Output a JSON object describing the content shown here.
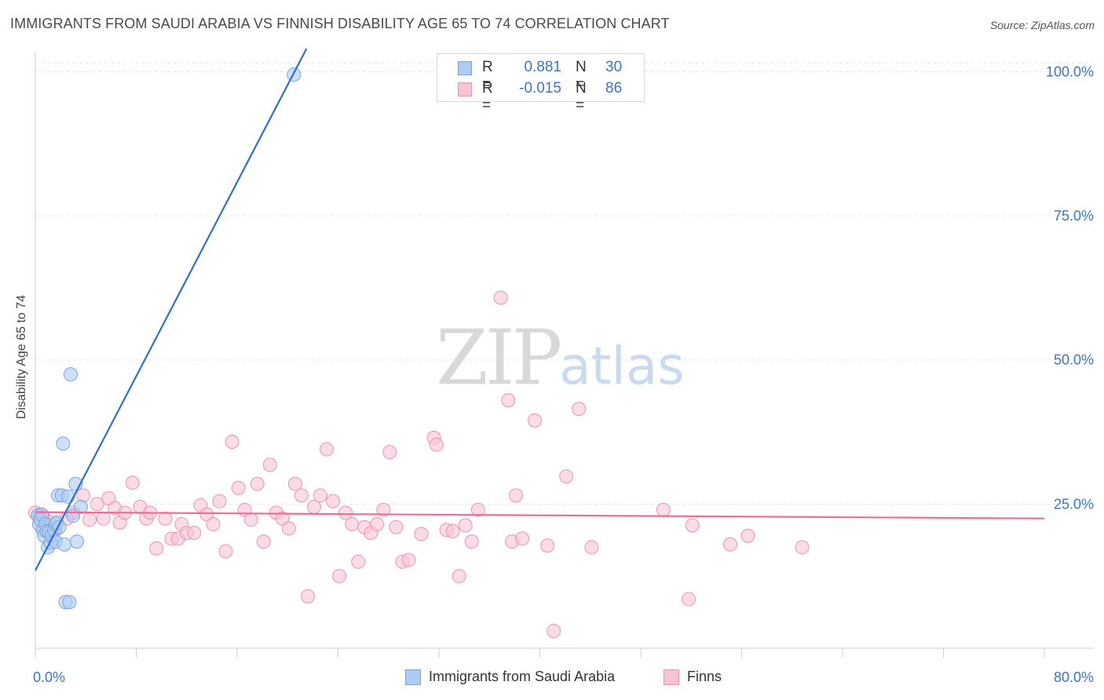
{
  "header": {
    "title": "IMMIGRANTS FROM SAUDI ARABIA VS FINNISH DISABILITY AGE 65 TO 74 CORRELATION CHART",
    "source": "Source: ZipAtlas.com"
  },
  "watermark": {
    "zip": "ZIP",
    "atlas": "atlas"
  },
  "stats": {
    "rows": [
      {
        "label": "R =",
        "r": "0.881",
        "n_label": "N =",
        "n": "30",
        "color": "#aecbf2",
        "border": "#7ba4dd"
      },
      {
        "label": "R =",
        "r": "-0.015",
        "n_label": "N =",
        "n": "86",
        "color": "#f8c3d3",
        "border": "#e996b0"
      }
    ]
  },
  "legend": {
    "items": [
      {
        "label": "Immigrants from Saudi Arabia",
        "color": "#aecbf2",
        "border": "#7ba4dd"
      },
      {
        "label": "Finns",
        "color": "#f8c3d3",
        "border": "#e996b0"
      }
    ]
  },
  "chart_data": {
    "type": "scatter",
    "title": "IMMIGRANTS FROM SAUDI ARABIA VS FINNISH DISABILITY AGE 65 TO 74 CORRELATION CHART",
    "xlabel": "",
    "ylabel": "Disability Age 65 to 74",
    "xlim": [
      0,
      80
    ],
    "ylim": [
      0,
      104
    ],
    "x_tick_labels": [
      "0.0%",
      "80.0%"
    ],
    "y_ticks": [
      25,
      50,
      75,
      100
    ],
    "y_tick_labels": [
      "25.0%",
      "50.0%",
      "75.0%",
      "100.0%"
    ],
    "grid": true,
    "series": [
      {
        "name": "Immigrants from Saudi Arabia",
        "color": "#aecbf2",
        "edge": "#7ba4dd",
        "trend_color": "#2f6fce",
        "trend": {
          "x": [
            0.0,
            21.5
          ],
          "y": [
            13.5,
            104.0
          ]
        },
        "points": [
          [
            0.2,
            23.0
          ],
          [
            0.3,
            21.5
          ],
          [
            0.4,
            22.3
          ],
          [
            0.5,
            23.2
          ],
          [
            0.6,
            20.5
          ],
          [
            0.7,
            19.5
          ],
          [
            0.8,
            21.5
          ],
          [
            0.9,
            20.3
          ],
          [
            1.0,
            17.5
          ],
          [
            1.1,
            20.2
          ],
          [
            1.2,
            18.3
          ],
          [
            1.3,
            19.5
          ],
          [
            1.5,
            20.5
          ],
          [
            1.6,
            21.5
          ],
          [
            1.6,
            18.5
          ],
          [
            1.7,
            21.8
          ],
          [
            1.8,
            26.5
          ],
          [
            1.9,
            21.0
          ],
          [
            2.1,
            26.5
          ],
          [
            2.3,
            18.0
          ],
          [
            2.2,
            35.5
          ],
          [
            2.4,
            8.0
          ],
          [
            2.7,
            8.0
          ],
          [
            2.6,
            26.3
          ],
          [
            2.8,
            47.5
          ],
          [
            3.0,
            23.0
          ],
          [
            3.2,
            28.5
          ],
          [
            3.3,
            18.5
          ],
          [
            3.6,
            24.5
          ],
          [
            20.5,
            99.5
          ]
        ]
      },
      {
        "name": "Finns",
        "color": "#f8c3d3",
        "edge": "#e996b0",
        "trend_color": "#e76f9a",
        "trend": {
          "x": [
            0.0,
            80.0
          ],
          "y": [
            23.6,
            22.5
          ]
        },
        "points": [
          [
            0.3,
            23.2
          ],
          [
            1.0,
            22.0
          ],
          [
            1.6,
            20.5
          ],
          [
            2.5,
            22.5
          ],
          [
            3.0,
            23.5
          ],
          [
            3.8,
            26.5
          ],
          [
            4.3,
            22.3
          ],
          [
            4.9,
            25.0
          ],
          [
            5.4,
            22.5
          ],
          [
            5.8,
            26.0
          ],
          [
            6.3,
            24.3
          ],
          [
            6.7,
            21.8
          ],
          [
            7.1,
            23.5
          ],
          [
            7.7,
            28.7
          ],
          [
            8.3,
            24.5
          ],
          [
            8.8,
            22.5
          ],
          [
            9.1,
            23.5
          ],
          [
            9.6,
            17.3
          ],
          [
            10.3,
            22.5
          ],
          [
            10.8,
            19.0
          ],
          [
            11.3,
            19.0
          ],
          [
            11.6,
            21.5
          ],
          [
            12.0,
            20.0
          ],
          [
            12.6,
            20.0
          ],
          [
            13.1,
            24.8
          ],
          [
            13.6,
            23.2
          ],
          [
            14.1,
            21.5
          ],
          [
            14.6,
            25.5
          ],
          [
            15.1,
            16.8
          ],
          [
            15.6,
            35.8
          ],
          [
            16.1,
            27.8
          ],
          [
            16.6,
            24.0
          ],
          [
            17.1,
            22.3
          ],
          [
            17.6,
            28.5
          ],
          [
            18.1,
            18.5
          ],
          [
            18.6,
            31.8
          ],
          [
            19.1,
            23.5
          ],
          [
            19.6,
            22.5
          ],
          [
            20.1,
            20.8
          ],
          [
            20.6,
            28.5
          ],
          [
            21.1,
            26.5
          ],
          [
            21.6,
            9.0
          ],
          [
            22.1,
            24.5
          ],
          [
            22.6,
            26.5
          ],
          [
            23.1,
            34.5
          ],
          [
            23.6,
            25.5
          ],
          [
            24.1,
            12.5
          ],
          [
            24.6,
            23.5
          ],
          [
            25.1,
            21.5
          ],
          [
            25.6,
            15.0
          ],
          [
            26.1,
            21.0
          ],
          [
            26.6,
            20.0
          ],
          [
            27.1,
            21.5
          ],
          [
            27.6,
            24.0
          ],
          [
            28.1,
            34.0
          ],
          [
            28.6,
            21.0
          ],
          [
            29.1,
            15.0
          ],
          [
            29.6,
            15.3
          ],
          [
            30.6,
            19.8
          ],
          [
            31.6,
            36.5
          ],
          [
            31.8,
            35.3
          ],
          [
            32.6,
            20.5
          ],
          [
            33.1,
            20.3
          ],
          [
            33.6,
            12.5
          ],
          [
            34.1,
            21.3
          ],
          [
            34.6,
            18.5
          ],
          [
            35.1,
            24.0
          ],
          [
            36.9,
            60.8
          ],
          [
            37.5,
            43.0
          ],
          [
            37.8,
            18.5
          ],
          [
            38.1,
            26.5
          ],
          [
            38.6,
            19.0
          ],
          [
            39.6,
            39.5
          ],
          [
            40.6,
            17.8
          ],
          [
            41.1,
            3.0
          ],
          [
            42.1,
            29.8
          ],
          [
            43.1,
            41.5
          ],
          [
            44.1,
            17.5
          ],
          [
            49.8,
            24.0
          ],
          [
            51.8,
            8.5
          ],
          [
            52.1,
            21.3
          ],
          [
            55.1,
            18.0
          ],
          [
            56.5,
            19.5
          ],
          [
            60.8,
            17.5
          ],
          [
            0.0,
            23.5
          ],
          [
            0.6,
            22.8
          ]
        ]
      }
    ]
  }
}
